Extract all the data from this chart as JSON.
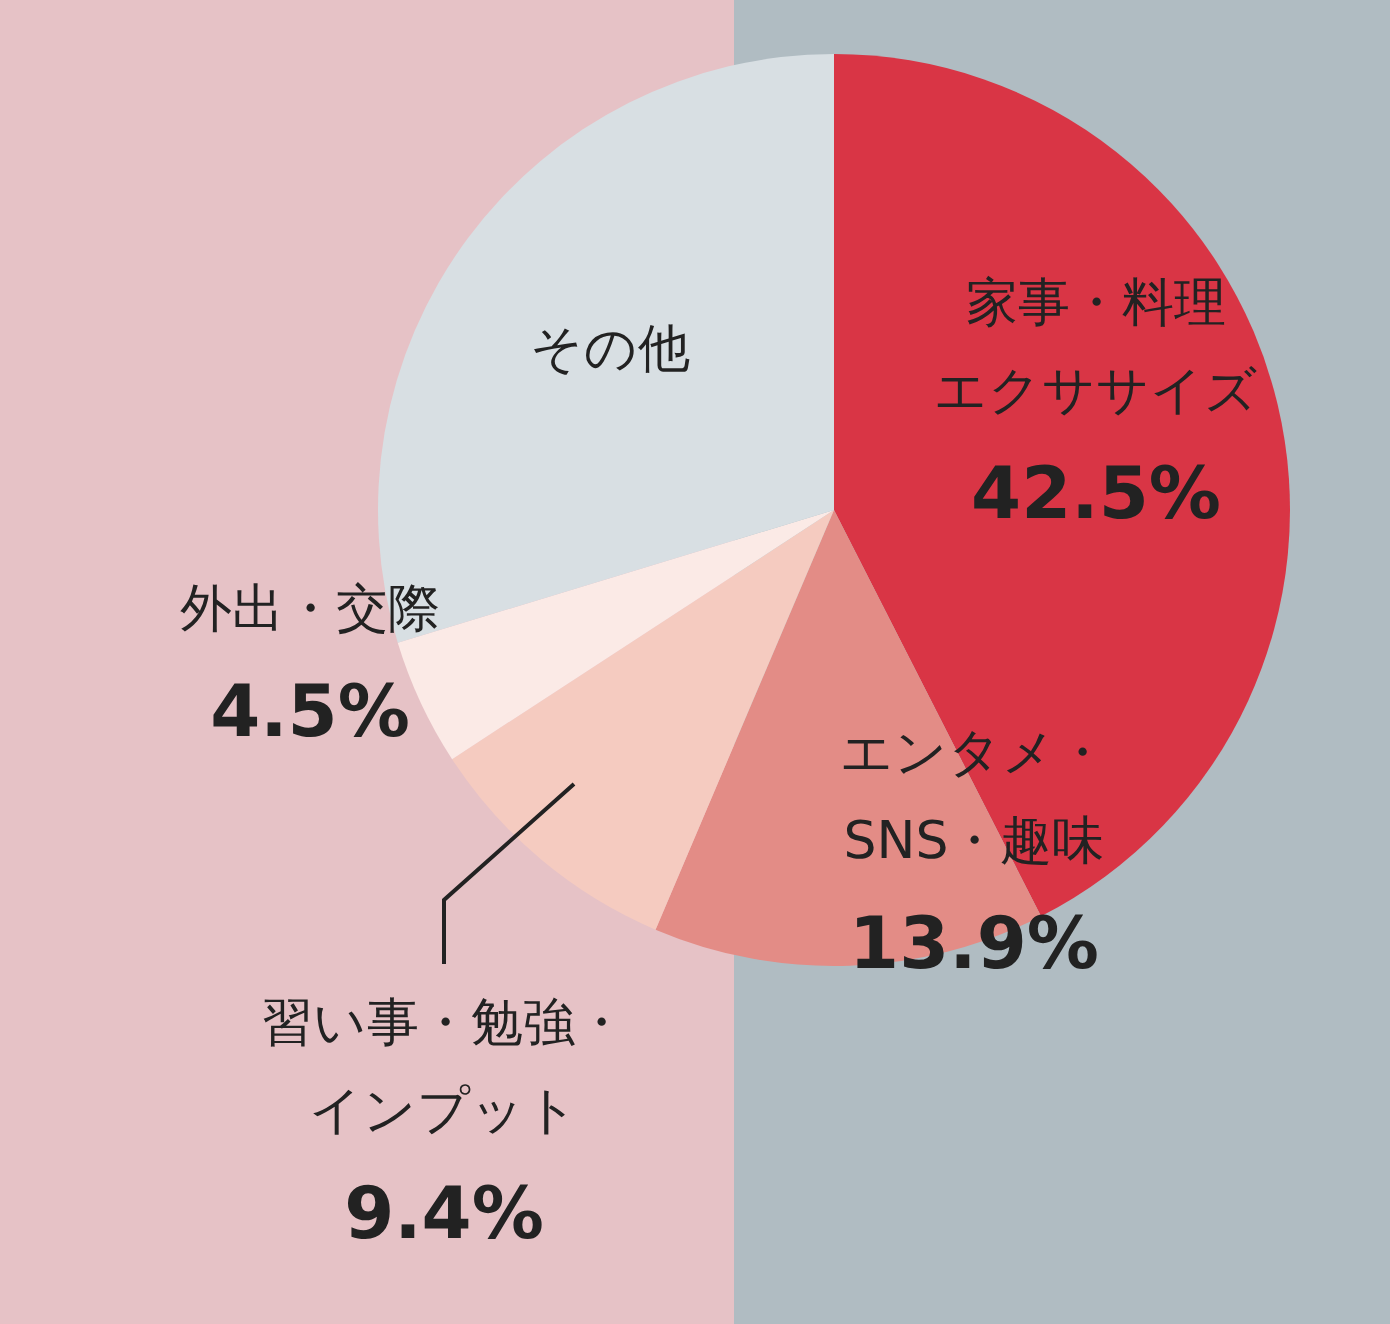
{
  "chart_data": {
    "type": "pie",
    "categories": [
      "家事・料理エクササイズ",
      "エンタメ・SNS・趣味",
      "習い事・勉強・インプット",
      "外出・交際",
      "その他"
    ],
    "values": [
      42.5,
      13.9,
      9.4,
      4.5,
      29.7
    ],
    "colors": [
      "#d93545",
      "#e38c86",
      "#f5cbc0",
      "#fbeae6",
      "#d8dfe3"
    ],
    "value_labels": [
      "42.5%",
      "13.9%",
      "9.4%",
      "4.5%",
      null
    ],
    "legend": false
  }
}
